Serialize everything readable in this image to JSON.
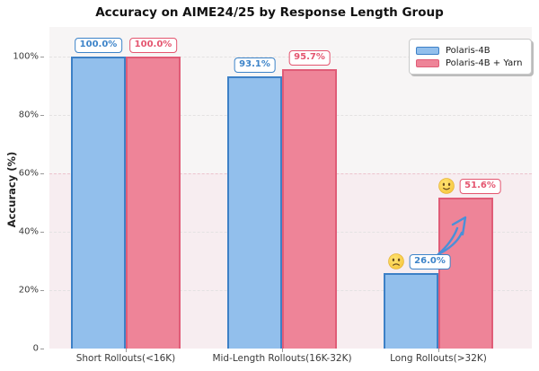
{
  "title": "Accuracy on AIME24/25 by Response Length Group",
  "chart_data": {
    "type": "bar",
    "title": "Accuracy on AIME24/25 by Response Length Group",
    "xlabel": "",
    "ylabel": "Accuracy (%)",
    "categories": [
      "Short Rollouts(<16K)",
      "Mid-Length Rollouts(16K-32K)",
      "Long Rollouts(>32K)"
    ],
    "series": [
      {
        "name": "Polaris-4B",
        "fill_color": "#92bfec",
        "border_color": "#3d80c6",
        "label_color": "#3d84c9",
        "values": [
          100.0,
          93.1,
          26.0
        ],
        "value_labels": [
          "100.0%",
          "93.1%",
          "26.0%"
        ]
      },
      {
        "name": "Polaris-4B + Yarn",
        "fill_color": "#ee8498",
        "border_color": "#e05c77",
        "label_color": "#e4556f",
        "values": [
          100.0,
          95.7,
          51.6
        ],
        "value_labels": [
          "100.0%",
          "95.7%",
          "51.6%"
        ]
      }
    ],
    "ylim": [
      0,
      110
    ],
    "yticks": [
      {
        "value": 0,
        "label": "0"
      },
      {
        "value": 20,
        "label": "20%"
      },
      {
        "value": 40,
        "label": "40%"
      },
      {
        "value": 60,
        "label": "60%"
      },
      {
        "value": 80,
        "label": "80%"
      },
      {
        "value": 100,
        "label": "100%"
      }
    ],
    "grid": true,
    "legend_position": "upper right",
    "highlight_band": {
      "from": 0,
      "to": 60,
      "color": "#f7edf0"
    },
    "annotations": [
      {
        "type": "emoji",
        "emoji": "slightly-frowning-face",
        "series_index": 0,
        "category_index": 2
      },
      {
        "type": "emoji",
        "emoji": "slightly-smiling-face",
        "series_index": 1,
        "category_index": 2
      },
      {
        "type": "arrow",
        "description": "hand-drawn curved arrow from 26.0% bar up to 51.6% bar",
        "color": "#4a90d8"
      }
    ]
  },
  "legend": {
    "items": [
      {
        "label": "Polaris-4B",
        "color": "#92bfec"
      },
      {
        "label": "Polaris-4B + Yarn",
        "color": "#ee8498"
      }
    ]
  }
}
